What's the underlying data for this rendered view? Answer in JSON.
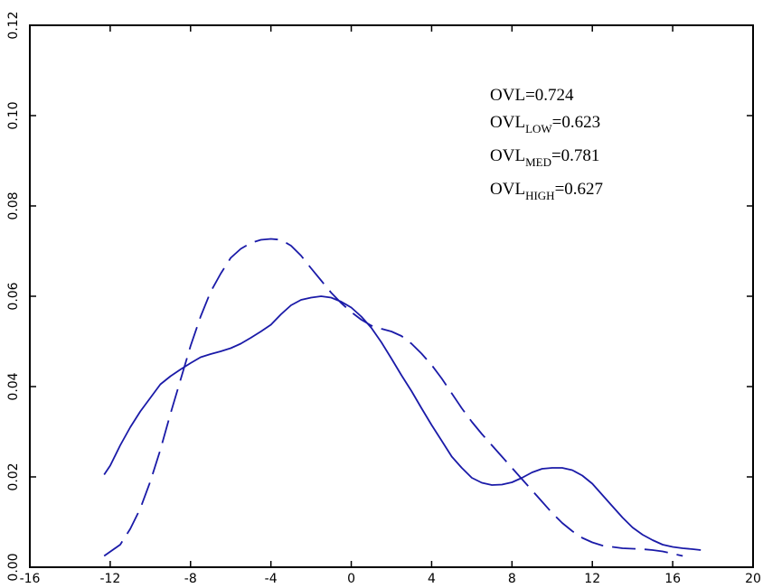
{
  "chart_data": {
    "type": "line",
    "xlim": [
      -16,
      20
    ],
    "ylim": [
      0,
      0.12
    ],
    "xticks": [
      "-16",
      "-12",
      "-8",
      "-4",
      "0",
      "4",
      "8",
      "12",
      "16",
      "20"
    ],
    "yticks": [
      "0.00",
      "0.02",
      "0.04",
      "0.06",
      "0.08",
      "0.10",
      "0.12"
    ],
    "grid": false,
    "line_color": "#1a1aa8",
    "annotations": [
      {
        "main": "OVL",
        "sub": "",
        "value": "=0.724"
      },
      {
        "main": "OVL",
        "sub": "LOW",
        "value": "=0.623"
      },
      {
        "main": "OVL",
        "sub": "MED",
        "value": "=0.781"
      },
      {
        "main": "OVL",
        "sub": "HIGH",
        "value": "=0.627"
      }
    ],
    "series": [
      {
        "style": "solid",
        "points": [
          [
            -12.3,
            0.0205
          ],
          [
            -12.0,
            0.0225
          ],
          [
            -11.5,
            0.027
          ],
          [
            -11.0,
            0.031
          ],
          [
            -10.5,
            0.0345
          ],
          [
            -10.0,
            0.0375
          ],
          [
            -9.5,
            0.0405
          ],
          [
            -9.0,
            0.0423
          ],
          [
            -8.5,
            0.0438
          ],
          [
            -8.0,
            0.0452
          ],
          [
            -7.5,
            0.0465
          ],
          [
            -7.0,
            0.0472
          ],
          [
            -6.5,
            0.0478
          ],
          [
            -6.0,
            0.0485
          ],
          [
            -5.5,
            0.0495
          ],
          [
            -5.0,
            0.0508
          ],
          [
            -4.5,
            0.0522
          ],
          [
            -4.0,
            0.0537
          ],
          [
            -3.5,
            0.056
          ],
          [
            -3.0,
            0.058
          ],
          [
            -2.5,
            0.0592
          ],
          [
            -2.0,
            0.0597
          ],
          [
            -1.5,
            0.06
          ],
          [
            -1.0,
            0.0597
          ],
          [
            -0.5,
            0.0588
          ],
          [
            0.0,
            0.0575
          ],
          [
            0.5,
            0.0555
          ],
          [
            1.0,
            0.053
          ],
          [
            1.5,
            0.0498
          ],
          [
            2.0,
            0.0462
          ],
          [
            2.5,
            0.0425
          ],
          [
            3.0,
            0.039
          ],
          [
            3.5,
            0.0352
          ],
          [
            4.0,
            0.0315
          ],
          [
            4.5,
            0.028
          ],
          [
            5.0,
            0.0245
          ],
          [
            5.5,
            0.022
          ],
          [
            6.0,
            0.0198
          ],
          [
            6.5,
            0.0187
          ],
          [
            7.0,
            0.0182
          ],
          [
            7.5,
            0.0183
          ],
          [
            8.0,
            0.0188
          ],
          [
            8.5,
            0.0198
          ],
          [
            9.0,
            0.021
          ],
          [
            9.5,
            0.0218
          ],
          [
            10.0,
            0.022
          ],
          [
            10.5,
            0.022
          ],
          [
            11.0,
            0.0215
          ],
          [
            11.5,
            0.0203
          ],
          [
            12.0,
            0.0185
          ],
          [
            12.5,
            0.016
          ],
          [
            13.0,
            0.0135
          ],
          [
            13.5,
            0.011
          ],
          [
            14.0,
            0.0088
          ],
          [
            14.5,
            0.0072
          ],
          [
            15.0,
            0.006
          ],
          [
            15.5,
            0.005
          ],
          [
            16.0,
            0.0045
          ],
          [
            16.5,
            0.0042
          ],
          [
            17.0,
            0.004
          ],
          [
            17.4,
            0.0038
          ]
        ]
      },
      {
        "style": "dashed",
        "points": [
          [
            -12.3,
            0.0025
          ],
          [
            -11.5,
            0.005
          ],
          [
            -11.0,
            0.0085
          ],
          [
            -10.5,
            0.013
          ],
          [
            -10.0,
            0.019
          ],
          [
            -9.5,
            0.026
          ],
          [
            -9.0,
            0.034
          ],
          [
            -8.5,
            0.0415
          ],
          [
            -8.0,
            0.049
          ],
          [
            -7.5,
            0.0555
          ],
          [
            -7.0,
            0.061
          ],
          [
            -6.5,
            0.065
          ],
          [
            -6.0,
            0.0685
          ],
          [
            -5.5,
            0.0705
          ],
          [
            -5.0,
            0.0718
          ],
          [
            -4.5,
            0.0725
          ],
          [
            -4.0,
            0.0727
          ],
          [
            -3.5,
            0.0725
          ],
          [
            -3.0,
            0.0712
          ],
          [
            -2.5,
            0.069
          ],
          [
            -2.0,
            0.0662
          ],
          [
            -1.5,
            0.0635
          ],
          [
            -1.0,
            0.0608
          ],
          [
            -0.5,
            0.0585
          ],
          [
            0.0,
            0.0565
          ],
          [
            0.5,
            0.0548
          ],
          [
            1.0,
            0.0535
          ],
          [
            1.5,
            0.0528
          ],
          [
            2.0,
            0.0522
          ],
          [
            2.5,
            0.0512
          ],
          [
            3.0,
            0.0495
          ],
          [
            3.5,
            0.0473
          ],
          [
            4.0,
            0.0448
          ],
          [
            4.5,
            0.0418
          ],
          [
            5.0,
            0.0385
          ],
          [
            5.5,
            0.0352
          ],
          [
            6.0,
            0.0322
          ],
          [
            6.5,
            0.0295
          ],
          [
            7.0,
            0.027
          ],
          [
            7.5,
            0.0245
          ],
          [
            8.0,
            0.022
          ],
          [
            8.5,
            0.0195
          ],
          [
            9.0,
            0.017
          ],
          [
            9.5,
            0.0145
          ],
          [
            10.0,
            0.012
          ],
          [
            10.5,
            0.0098
          ],
          [
            11.0,
            0.008
          ],
          [
            11.5,
            0.0065
          ],
          [
            12.0,
            0.0055
          ],
          [
            12.5,
            0.0048
          ],
          [
            13.0,
            0.0045
          ],
          [
            13.5,
            0.0042
          ],
          [
            14.0,
            0.0041
          ],
          [
            14.5,
            0.004
          ],
          [
            15.0,
            0.0038
          ],
          [
            15.5,
            0.0035
          ],
          [
            16.0,
            0.003
          ],
          [
            16.5,
            0.0025
          ]
        ]
      }
    ]
  }
}
